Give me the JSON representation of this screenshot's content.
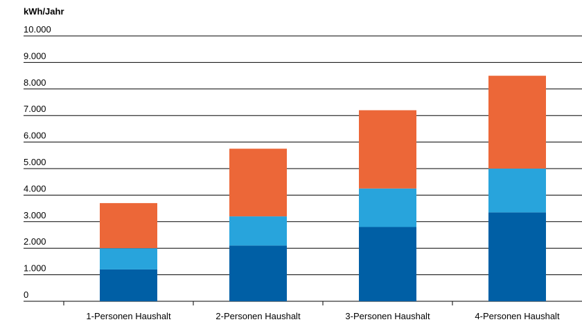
{
  "chart_data": {
    "type": "bar",
    "stacked": true,
    "ylabel": "kWh/Jahr",
    "ylim": [
      0,
      10000
    ],
    "yticks": [
      "0",
      "1.000",
      "2.000",
      "3.000",
      "4.000",
      "5.000",
      "6.000",
      "7.000",
      "8.000",
      "9.000",
      "10.000"
    ],
    "categories": [
      "1-Personen Haushalt",
      "2-Personen Haushalt",
      "3-Personen Haushalt",
      "4-Personen Haushalt"
    ],
    "grid": true,
    "legend": "none",
    "series": [
      {
        "color": "#005FA5",
        "values": [
          1200,
          2100,
          2800,
          3350
        ]
      },
      {
        "color": "#28A4DC",
        "values": [
          800,
          1100,
          1450,
          1650
        ]
      },
      {
        "color": "#EC6738",
        "values": [
          1700,
          2550,
          2950,
          3500
        ]
      }
    ]
  }
}
